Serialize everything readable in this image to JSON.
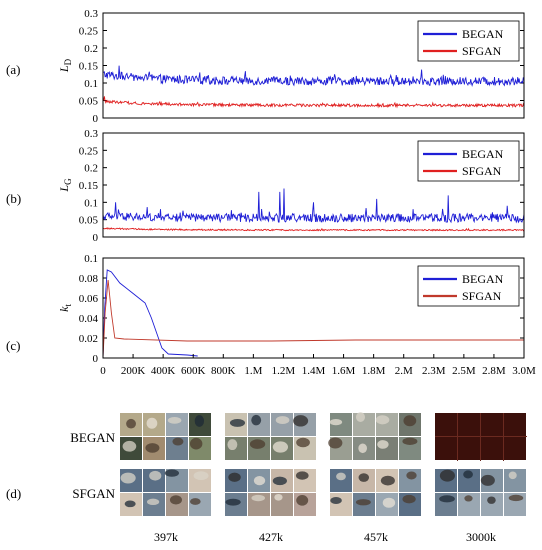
{
  "chart_data": [
    {
      "type": "line",
      "panel": "(a)",
      "ylabel": "L",
      "ylabel_sub": "D",
      "ylim": [
        0,
        0.3
      ],
      "yticks": [
        "0",
        "0.05",
        "0.1",
        "0.15",
        "0.2",
        "0.25",
        "0.3"
      ],
      "legend": "top-right",
      "series": [
        {
          "name": "BEGAN",
          "color": "#1f1fd6",
          "base": 0.105,
          "start": 0.125,
          "noise": 0.012,
          "spikes": []
        },
        {
          "name": "SFGAN",
          "color": "#e02020",
          "base": 0.036,
          "start": 0.048,
          "noise": 0.004,
          "spikes": [
            [
              0.004,
              0.062
            ]
          ]
        }
      ]
    },
    {
      "type": "line",
      "panel": "(b)",
      "ylabel": "L",
      "ylabel_sub": "G",
      "ylim": [
        0,
        0.3
      ],
      "yticks": [
        "0",
        "0.05",
        "0.1",
        "0.15",
        "0.2",
        "0.25",
        "0.3"
      ],
      "legend": "top-right",
      "series": [
        {
          "name": "BEGAN",
          "color": "#1f1fd6",
          "base": 0.055,
          "start": 0.06,
          "noise": 0.012,
          "spikes": [
            [
              0.03,
              0.1
            ],
            [
              0.37,
              0.13
            ],
            [
              0.42,
              0.13
            ],
            [
              0.43,
              0.14
            ],
            [
              0.5,
              0.1
            ],
            [
              0.65,
              0.11
            ],
            [
              0.82,
              0.12
            ],
            [
              0.96,
              0.09
            ]
          ]
        },
        {
          "name": "SFGAN",
          "color": "#e02020",
          "base": 0.02,
          "start": 0.025,
          "noise": 0.002,
          "spikes": []
        }
      ]
    },
    {
      "type": "line",
      "panel": "(c)",
      "ylabel": "k",
      "ylabel_sub": "t",
      "ylim": [
        0,
        0.1
      ],
      "yticks": [
        "0",
        "0.02",
        "0.04",
        "0.06",
        "0.08",
        "0.1"
      ],
      "legend": "top-right",
      "xticks": [
        "0",
        "200K",
        "400K",
        "600K",
        "800K",
        "1.M",
        "1.2M",
        "1.4M",
        "1.6M",
        "1.8M",
        "2.M",
        "2.3M",
        "2.5M",
        "2.8M",
        "3.0M"
      ],
      "series": [
        {
          "name": "BEGAN",
          "color": "#1f1fd6",
          "points": [
            [
              0,
              0.0
            ],
            [
              0.004,
              0.05
            ],
            [
              0.01,
              0.088
            ],
            [
              0.02,
              0.086
            ],
            [
              0.04,
              0.075
            ],
            [
              0.07,
              0.065
            ],
            [
              0.1,
              0.055
            ],
            [
              0.115,
              0.04
            ],
            [
              0.13,
              0.022
            ],
            [
              0.14,
              0.01
            ],
            [
              0.155,
              0.004
            ],
            [
              0.2,
              0.003
            ],
            [
              0.225,
              0.002
            ]
          ]
        },
        {
          "name": "SFGAN",
          "color": "#c0392b",
          "points": [
            [
              0,
              0.0
            ],
            [
              0.005,
              0.045
            ],
            [
              0.012,
              0.078
            ],
            [
              0.02,
              0.045
            ],
            [
              0.028,
              0.02
            ],
            [
              0.05,
              0.019
            ],
            [
              0.2,
              0.017
            ],
            [
              0.4,
              0.017
            ],
            [
              0.6,
              0.018
            ],
            [
              0.8,
              0.018
            ],
            [
              1.0,
              0.018
            ]
          ]
        }
      ]
    }
  ],
  "samples": {
    "panel": "(d)",
    "rows": [
      "BEGAN",
      "SFGAN"
    ],
    "columns": [
      "397k",
      "427k",
      "457k",
      "3000k"
    ]
  }
}
